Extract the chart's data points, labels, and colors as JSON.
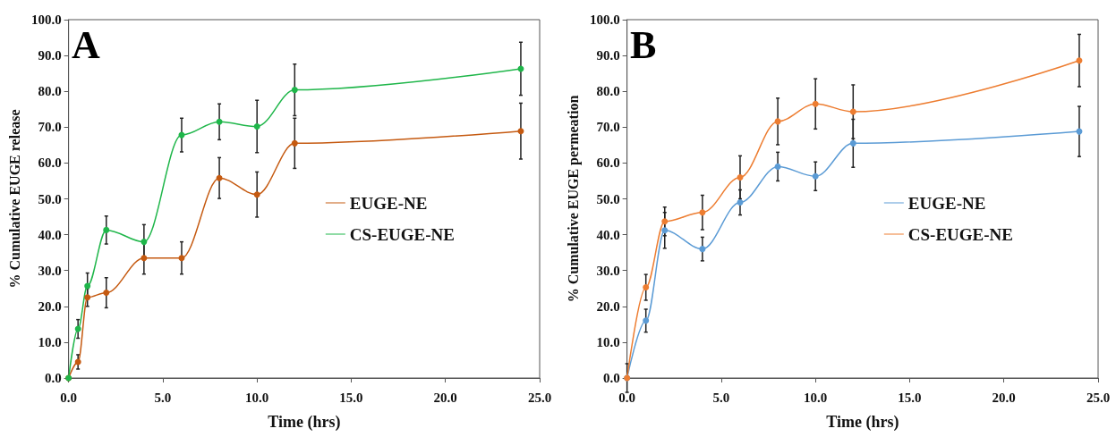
{
  "chart_data": [
    {
      "type": "line",
      "xlabel": "Time (hrs)",
      "ylabel": "% Cumulative EUGE release",
      "annotations": [
        "A"
      ],
      "xlim": [
        0,
        25
      ],
      "ylim": [
        0,
        100
      ],
      "xticks": [
        {
          "value": 0,
          "label": "0.0"
        },
        {
          "value": 5,
          "label": "5.0"
        },
        {
          "value": 10,
          "label": "10.0"
        },
        {
          "value": 15,
          "label": "15.0"
        },
        {
          "value": 20,
          "label": "20.0"
        },
        {
          "value": 25,
          "label": "25.0"
        }
      ],
      "yticks": [
        {
          "value": 0,
          "label": "0.0"
        },
        {
          "value": 10,
          "label": "10.0"
        },
        {
          "value": 20,
          "label": "20.0"
        },
        {
          "value": 30,
          "label": "30.0"
        },
        {
          "value": 40,
          "label": "40.0"
        },
        {
          "value": 50,
          "label": "50.0"
        },
        {
          "value": 60,
          "label": "60.0"
        },
        {
          "value": 70,
          "label": "70.0"
        },
        {
          "value": 80,
          "label": "80.0"
        },
        {
          "value": 90,
          "label": "90.0"
        },
        {
          "value": 100,
          "label": "100.0"
        }
      ],
      "x": [
        0,
        0.5,
        1,
        2,
        4,
        6,
        8,
        10,
        12,
        24
      ],
      "grid": false,
      "legend": "right",
      "marker": "circle",
      "line_style": "solid",
      "series": [
        {
          "name": "EUGE-NE",
          "color": "#c55a11",
          "values": [
            0,
            4.5,
            22.5,
            23.8,
            33.5,
            33.5,
            55.8,
            51.2,
            65.5,
            68.9
          ],
          "errors": [
            null,
            2,
            2.5,
            4.2,
            4.5,
            4.5,
            5.7,
            6.3,
            7,
            7.8
          ]
        },
        {
          "name": "CS-EUGE-NE",
          "color": "#1fb64a",
          "values": [
            0,
            13.7,
            25.7,
            41.3,
            38,
            67.8,
            71.5,
            70.2,
            80.4,
            86.3
          ],
          "errors": [
            null,
            2.6,
            3.6,
            3.9,
            4.8,
            4.7,
            5,
            7.3,
            7.2,
            7.4
          ]
        }
      ]
    },
    {
      "type": "line",
      "xlabel": "Time (hrs)",
      "ylabel": "% Cumulative EUGE permeation",
      "annotations": [
        "B"
      ],
      "xlim": [
        0,
        25
      ],
      "ylim": [
        0,
        100
      ],
      "xticks": [
        {
          "value": 0,
          "label": "0.0"
        },
        {
          "value": 5,
          "label": "5.0"
        },
        {
          "value": 10,
          "label": "10.0"
        },
        {
          "value": 15,
          "label": "15.0"
        },
        {
          "value": 20,
          "label": "20.0"
        },
        {
          "value": 25,
          "label": "25.0"
        }
      ],
      "yticks": [
        {
          "value": 0,
          "label": "0.0"
        },
        {
          "value": 10,
          "label": "10.0"
        },
        {
          "value": 20,
          "label": "20.0"
        },
        {
          "value": 30,
          "label": "30.0"
        },
        {
          "value": 40,
          "label": "40.0"
        },
        {
          "value": 50,
          "label": "50.0"
        },
        {
          "value": 60,
          "label": "60.0"
        },
        {
          "value": 70,
          "label": "70.0"
        },
        {
          "value": 80,
          "label": "80.0"
        },
        {
          "value": 90,
          "label": "90.0"
        },
        {
          "value": 100,
          "label": "100.0"
        }
      ],
      "x": [
        0,
        1,
        2,
        4,
        6,
        8,
        10,
        12,
        24
      ],
      "grid": false,
      "legend": "right",
      "marker": "circle",
      "line_style": "solid",
      "series": [
        {
          "name": "EUGE-NE",
          "color": "#5b9bd5",
          "values": [
            0,
            16,
            41.2,
            36,
            49,
            59,
            56.3,
            65.5,
            68.8
          ],
          "errors": [
            null,
            3.2,
            5,
            3.3,
            3.5,
            4,
            4,
            6.7,
            7
          ]
        },
        {
          "name": "CS-EUGE-NE",
          "color": "#ed7d31",
          "values": [
            0,
            25.3,
            43.7,
            46.2,
            56,
            71.6,
            76.5,
            74.3,
            88.6
          ],
          "errors": [
            4,
            3.6,
            4,
            4.8,
            6,
            6.5,
            7,
            7.5,
            7.3
          ]
        }
      ]
    }
  ]
}
